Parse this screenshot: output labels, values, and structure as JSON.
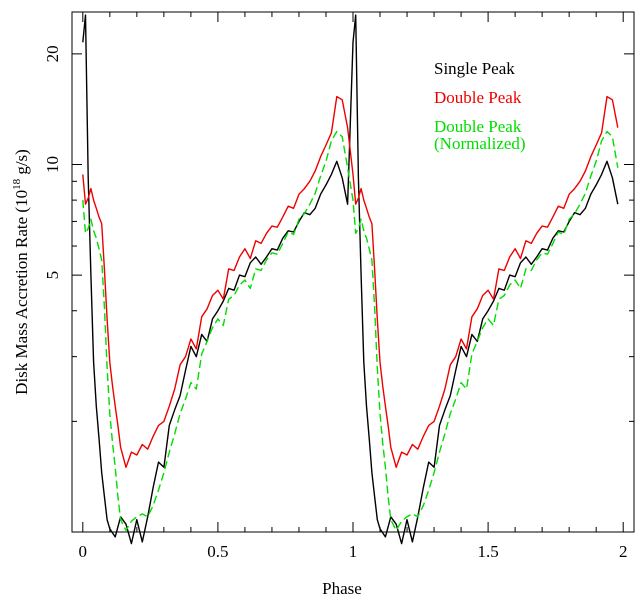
{
  "chart_data": {
    "type": "line",
    "xlabel": "Phase",
    "ylabel": "Disk Mass Accretion Rate (10",
    "ylabel_exp": "18",
    "ylabel_unit": " g/s)",
    "xlim": [
      -0.04,
      2.04
    ],
    "ylim": [
      1.0,
      26.0
    ],
    "y_scale": "log",
    "grid": false,
    "legend_position": "top-right",
    "x_ticks": [
      {
        "value": 0,
        "label": "0"
      },
      {
        "value": 0.5,
        "label": "0.5"
      },
      {
        "value": 1,
        "label": "1"
      },
      {
        "value": 1.5,
        "label": "1.5"
      },
      {
        "value": 2,
        "label": "2"
      }
    ],
    "y_ticks": [
      {
        "value": 5,
        "label": "5"
      },
      {
        "value": 10,
        "label": "10"
      },
      {
        "value": 20,
        "label": "20"
      }
    ],
    "x_minor_step": 0.1,
    "y_minor_ticks": [
      2,
      3,
      4,
      6,
      7,
      8,
      9
    ],
    "series": [
      {
        "name": "Single Peak",
        "color": "#000000",
        "dash": "",
        "phase": [
          0,
          0.01,
          0.02,
          0.03,
          0.04,
          0.05,
          0.06,
          0.07,
          0.08,
          0.09,
          0.1,
          0.12,
          0.14,
          0.16,
          0.18,
          0.2,
          0.22,
          0.24,
          0.26,
          0.28,
          0.3,
          0.32,
          0.34,
          0.36,
          0.38,
          0.4,
          0.42,
          0.44,
          0.46,
          0.48,
          0.5,
          0.52,
          0.54,
          0.56,
          0.58,
          0.6,
          0.62,
          0.64,
          0.66,
          0.68,
          0.7,
          0.72,
          0.74,
          0.76,
          0.78,
          0.8,
          0.82,
          0.84,
          0.86,
          0.88,
          0.9,
          0.92,
          0.94,
          0.96,
          0.98
        ],
        "values": [
          21.5,
          25.5,
          9.2,
          5.0,
          2.9,
          2.2,
          1.8,
          1.45,
          1.25,
          1.08,
          1.02,
          0.97,
          1.1,
          1.05,
          0.93,
          1.08,
          0.94,
          1.1,
          1.32,
          1.55,
          1.5,
          1.95,
          2.15,
          2.35,
          2.75,
          3.2,
          3.0,
          3.45,
          3.3,
          3.8,
          4.0,
          4.25,
          4.6,
          4.55,
          5.0,
          4.95,
          5.4,
          5.6,
          5.35,
          5.6,
          5.9,
          5.85,
          6.3,
          6.6,
          6.55,
          7.0,
          7.4,
          7.3,
          7.6,
          8.3,
          8.8,
          9.4,
          10.2,
          9.2,
          7.8
        ]
      },
      {
        "name": "Double Peak",
        "color": "#ee0000",
        "dash": "",
        "phase": [
          0,
          0.01,
          0.02,
          0.03,
          0.04,
          0.05,
          0.06,
          0.07,
          0.08,
          0.09,
          0.1,
          0.11,
          0.12,
          0.13,
          0.14,
          0.16,
          0.18,
          0.2,
          0.22,
          0.24,
          0.26,
          0.28,
          0.3,
          0.32,
          0.34,
          0.36,
          0.38,
          0.4,
          0.42,
          0.44,
          0.46,
          0.48,
          0.5,
          0.52,
          0.54,
          0.56,
          0.58,
          0.6,
          0.62,
          0.64,
          0.66,
          0.68,
          0.7,
          0.72,
          0.74,
          0.76,
          0.78,
          0.8,
          0.82,
          0.84,
          0.86,
          0.88,
          0.9,
          0.92,
          0.94,
          0.96,
          0.98
        ],
        "values": [
          9.4,
          7.8,
          8.1,
          8.6,
          8.0,
          7.6,
          7.2,
          6.9,
          5.2,
          3.8,
          2.9,
          2.5,
          2.2,
          1.95,
          1.7,
          1.5,
          1.65,
          1.62,
          1.73,
          1.68,
          1.82,
          1.95,
          2.0,
          2.2,
          2.45,
          2.85,
          3.0,
          3.35,
          3.15,
          3.85,
          4.05,
          4.4,
          4.55,
          4.3,
          5.2,
          5.15,
          5.6,
          5.9,
          5.55,
          6.2,
          6.1,
          6.5,
          6.8,
          6.75,
          7.2,
          7.7,
          7.6,
          8.3,
          8.6,
          9.0,
          9.6,
          10.5,
          11.3,
          12.2,
          15.3,
          15.0,
          12.6
        ]
      },
      {
        "name": "Double Peak (Normalized)",
        "color": "#00dd00",
        "dash": "8,4",
        "phase": [
          0,
          0.01,
          0.02,
          0.03,
          0.04,
          0.05,
          0.06,
          0.07,
          0.08,
          0.09,
          0.1,
          0.11,
          0.12,
          0.13,
          0.14,
          0.16,
          0.18,
          0.2,
          0.22,
          0.24,
          0.26,
          0.28,
          0.3,
          0.32,
          0.34,
          0.36,
          0.38,
          0.4,
          0.42,
          0.44,
          0.46,
          0.48,
          0.5,
          0.52,
          0.54,
          0.56,
          0.58,
          0.6,
          0.62,
          0.64,
          0.66,
          0.68,
          0.7,
          0.72,
          0.74,
          0.76,
          0.78,
          0.8,
          0.82,
          0.84,
          0.86,
          0.88,
          0.9,
          0.92,
          0.94,
          0.96,
          0.98
        ],
        "values": [
          8.0,
          6.5,
          6.7,
          7.1,
          6.6,
          6.3,
          5.9,
          5.5,
          4.1,
          2.8,
          2.1,
          1.75,
          1.5,
          1.25,
          1.08,
          1.01,
          1.07,
          1.1,
          1.12,
          1.1,
          1.18,
          1.3,
          1.45,
          1.65,
          1.85,
          2.1,
          2.3,
          2.55,
          2.45,
          3.05,
          3.3,
          3.6,
          3.8,
          3.65,
          4.3,
          4.4,
          4.7,
          4.85,
          4.6,
          5.2,
          5.15,
          5.5,
          5.75,
          5.7,
          6.1,
          6.55,
          6.45,
          7.1,
          7.35,
          7.8,
          8.35,
          9.3,
          10.2,
          11.6,
          12.3,
          11.9,
          9.8
        ]
      }
    ]
  },
  "legend": [
    {
      "lines": [
        "Single Peak"
      ],
      "color": "#000000"
    },
    {
      "lines": [
        "Double Peak"
      ],
      "color": "#ee0000"
    },
    {
      "lines": [
        "Double Peak",
        "(Normalized)"
      ],
      "color": "#00dd00"
    }
  ]
}
